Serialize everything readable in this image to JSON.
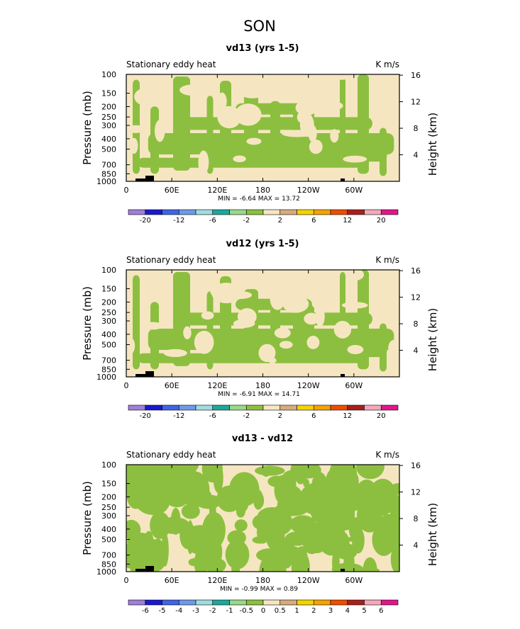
{
  "page_title": "SON",
  "colors": {
    "ocean": "#f5e6c1",
    "land": "#8cbf3f",
    "topography": "#000000"
  },
  "palette_main": [
    "#9f7fd8",
    "#1919d0",
    "#3f65e6",
    "#6f9ae8",
    "#a0dce0",
    "#1da89a",
    "#99d98a",
    "#8cbf3f",
    "#f5e6c1",
    "#d8ab7c",
    "#f4d300",
    "#f4a300",
    "#ef4d00",
    "#a8201c",
    "#f4a9b8",
    "#e0168c"
  ],
  "palette_diff": [
    "#9f7fd8",
    "#1919d0",
    "#3f65e6",
    "#6f9ae8",
    "#a0dce0",
    "#1da89a",
    "#99d98a",
    "#8cbf3f",
    "#f5e6c1",
    "#d8ab7c",
    "#f4d300",
    "#f4a300",
    "#ef4d00",
    "#a8201c",
    "#f4a9b8",
    "#e0168c"
  ],
  "chart_data": [
    {
      "type": "heatmap",
      "title": "vd13 (yrs 1-5)",
      "subtitle_left": "Stationary eddy heat",
      "subtitle_right": "K m/s",
      "ylabel": "Pressure (mb)",
      "ylabel_right": "Height (km)",
      "x_ticks": [
        "0",
        "60E",
        "120E",
        "180",
        "120W",
        "60W"
      ],
      "y_ticks": [
        "100",
        "150",
        "200",
        "250",
        "300",
        "400",
        "500",
        "700",
        "850",
        "1000"
      ],
      "y_ticks_right": [
        "16",
        "12",
        "8",
        "4"
      ],
      "stats_text": "MIN =   -6.64   MAX =   13.72",
      "min": -6.64,
      "max": 13.72,
      "colorbar_labels": [
        "-20",
        "-12",
        "-6",
        "-2",
        "2",
        "6",
        "12",
        "20"
      ]
    },
    {
      "type": "heatmap",
      "title": "vd12 (yrs 1-5)",
      "subtitle_left": "Stationary eddy heat",
      "subtitle_right": "K m/s",
      "ylabel": "Pressure (mb)",
      "ylabel_right": "Height (km)",
      "x_ticks": [
        "0",
        "60E",
        "120E",
        "180",
        "120W",
        "60W"
      ],
      "y_ticks": [
        "100",
        "150",
        "200",
        "250",
        "300",
        "400",
        "500",
        "700",
        "850",
        "1000"
      ],
      "y_ticks_right": [
        "16",
        "12",
        "8",
        "4"
      ],
      "stats_text": "MIN =   -6.91   MAX =   14.71",
      "min": -6.91,
      "max": 14.71,
      "colorbar_labels": [
        "-20",
        "-12",
        "-6",
        "-2",
        "2",
        "6",
        "12",
        "20"
      ]
    },
    {
      "type": "heatmap",
      "title": "vd13 - vd12",
      "subtitle_left": "Stationary eddy heat",
      "subtitle_right": "K m/s",
      "ylabel": "Pressure (mb)",
      "ylabel_right": "Height (km)",
      "x_ticks": [
        "0",
        "60E",
        "120E",
        "180",
        "120W",
        "60W"
      ],
      "y_ticks": [
        "100",
        "150",
        "200",
        "250",
        "300",
        "400",
        "500",
        "700",
        "850",
        "1000"
      ],
      "y_ticks_right": [
        "16",
        "12",
        "8",
        "4"
      ],
      "stats_text": "MIN =   -0.99   MAX =    0.89",
      "min": -0.99,
      "max": 0.89,
      "colorbar_labels": [
        "-6",
        "-5",
        "-4",
        "-3",
        "-2",
        "-1",
        "-0.5",
        "0",
        "0.5",
        "1",
        "2",
        "3",
        "4",
        "5",
        "6"
      ]
    }
  ]
}
